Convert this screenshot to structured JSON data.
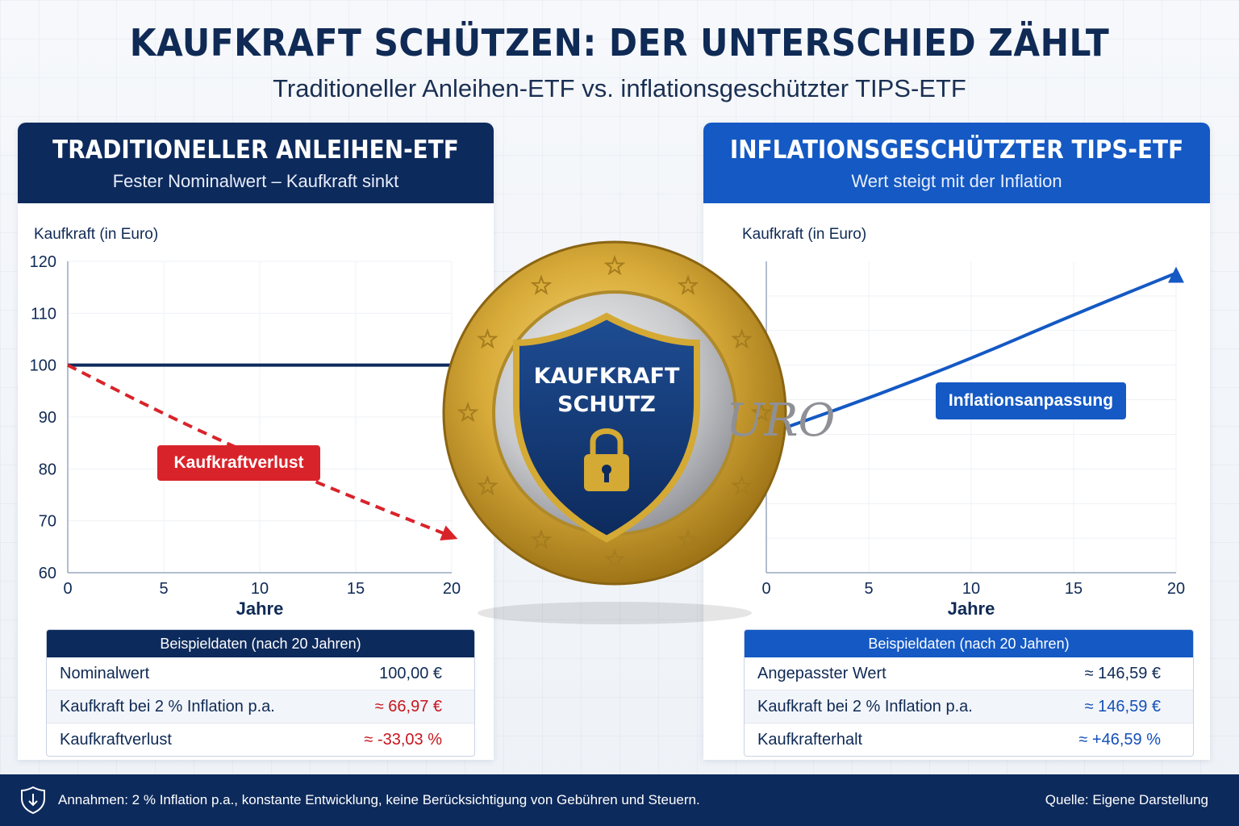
{
  "header": {
    "title": "KAUFKRAFT SCHÜTZEN: DER UNTERSCHIED ZÄHLT",
    "subtitle": "Traditioneller Anleihen-ETF vs. inflationsgeschützter TIPS-ETF"
  },
  "left_panel": {
    "title": "TRADITIONELLER ANLEIHEN-ETF",
    "subtitle": "Fester Nominalwert – Kaufkraft sinkt",
    "table": {
      "header": "Beispieldaten (nach 20 Jahren)",
      "rows": [
        {
          "label": "Nominalwert",
          "value": "100,00 €"
        },
        {
          "label": "Kaufkraft bei 2 % Inflation p.a.",
          "value": "≈ 66,97 €"
        },
        {
          "label": "Kaufkraftverlust",
          "value": "≈ -33,03 %"
        }
      ]
    }
  },
  "right_panel": {
    "title": "INFLATIONSGESCHÜTZTER TIPS-ETF",
    "subtitle": "Wert steigt mit der Inflation",
    "table": {
      "header": "Beispieldaten (nach 20 Jahren)",
      "rows": [
        {
          "label": "Angepasster Wert",
          "value": "≈ 146,59 €"
        },
        {
          "label": "Kaufkraft bei 2 % Inflation p.a.",
          "value": "≈ 146,59 €"
        },
        {
          "label": "Kaufkrafterhalt",
          "value": "≈ +46,59 %"
        }
      ]
    }
  },
  "coin": {
    "shield_text_line1": "KAUFKRAFT",
    "shield_text_line2": "SCHUTZ",
    "icon": "padlock-icon"
  },
  "chart_data": [
    {
      "type": "line",
      "ylabel": "Kaufkraft (in Euro)",
      "xlabel": "Jahre",
      "xlim": [
        0,
        20
      ],
      "ylim": [
        60,
        120
      ],
      "x_ticks": [
        0,
        5,
        10,
        15,
        20
      ],
      "y_ticks": [
        60,
        70,
        80,
        90,
        100,
        110,
        120
      ],
      "series": [
        {
          "x": [
            0,
            20
          ],
          "y": [
            100,
            100
          ],
          "color": "#0d2a5c",
          "style": "solid"
        },
        {
          "x": [
            0,
            5,
            10,
            15,
            20
          ],
          "y": [
            100,
            90.57,
            82.03,
            74.3,
            66.97
          ],
          "color": "#d9232a",
          "style": "dashed"
        }
      ],
      "annotation": "Kaufkraftverlust"
    },
    {
      "type": "line",
      "ylabel": "Kaufkraft (in Euro)",
      "xlabel": "Jahre",
      "xlim": [
        0,
        20
      ],
      "ylim": [
        60,
        150
      ],
      "x_ticks": [
        0,
        5,
        10,
        15,
        20
      ],
      "series": [
        {
          "x": [
            0,
            5,
            10,
            15,
            20
          ],
          "y": [
            100,
            110.41,
            121.9,
            134.59,
            146.59
          ],
          "color": "#1459c4",
          "style": "solid"
        }
      ],
      "annotation": "Inflationsanpassung"
    }
  ],
  "colors": {
    "navy": "#0d2a5c",
    "blue": "#1459c4",
    "red": "#d9232a",
    "gold": "#d4a934"
  },
  "footer": {
    "note": "Annahmen: 2 % Inflation p.a., konstante Entwicklung, keine Berücksichtigung von Gebühren und Steuern.",
    "source": "Quelle: Eigene Darstellung",
    "icon": "shield-icon"
  }
}
